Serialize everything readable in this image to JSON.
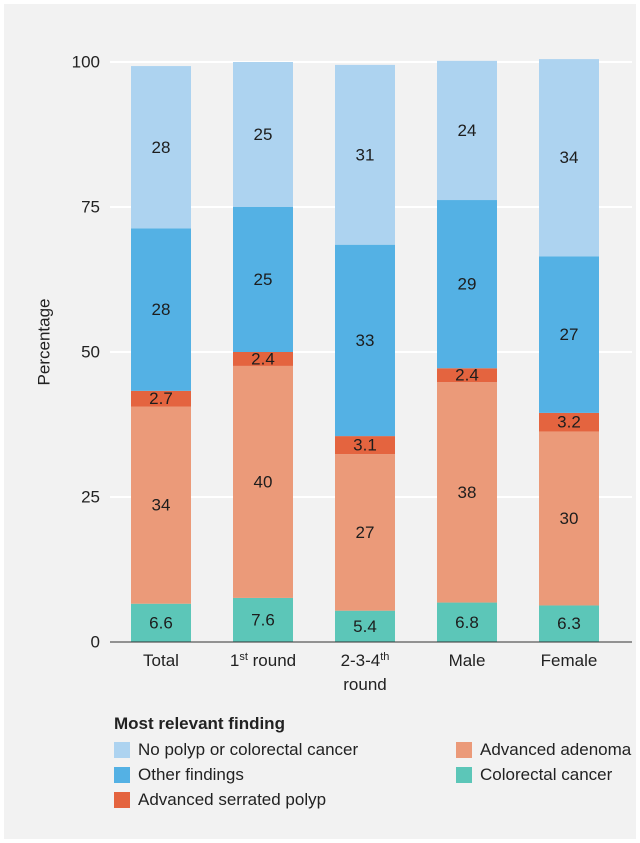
{
  "chart_data": {
    "type": "bar",
    "stacked": true,
    "ylabel": "Percentage",
    "ylim": [
      0,
      100
    ],
    "yticks": [
      0,
      25,
      50,
      75,
      100
    ],
    "grid": true,
    "categories": [
      {
        "label": "Total"
      },
      {
        "label": "1",
        "sup": "st",
        "suffix": " round"
      },
      {
        "label": "2-3-4",
        "sup": "th",
        "line2": "round"
      },
      {
        "label": "Male"
      },
      {
        "label": "Female"
      }
    ],
    "series": [
      {
        "name": "Colorectal cancer",
        "color": "#5cc6b8",
        "values": [
          6.6,
          7.6,
          5.4,
          6.8,
          6.3
        ]
      },
      {
        "name": "Advanced adenoma",
        "color": "#eb9a79",
        "values": [
          34,
          40,
          27,
          38,
          30
        ]
      },
      {
        "name": "Advanced serrated polyp",
        "color": "#e4643f",
        "values": [
          2.7,
          2.4,
          3.1,
          2.4,
          3.2
        ]
      },
      {
        "name": "Other findings",
        "color": "#54b1e4",
        "values": [
          28,
          25,
          33,
          29,
          27
        ]
      },
      {
        "name": "No polyp or colorectal cancer",
        "color": "#add3f0",
        "values": [
          28,
          25,
          31,
          24,
          34
        ]
      }
    ]
  },
  "legend": {
    "title": "Most relevant finding",
    "items": [
      {
        "label": "No polyp or colorectal cancer",
        "color": "#add3f0"
      },
      {
        "label": "Advanced adenoma",
        "color": "#eb9a79"
      },
      {
        "label": "Other findings",
        "color": "#54b1e4"
      },
      {
        "label": "Colorectal cancer",
        "color": "#5cc6b8"
      },
      {
        "label": "Advanced serrated polyp",
        "color": "#e4643f"
      }
    ]
  }
}
